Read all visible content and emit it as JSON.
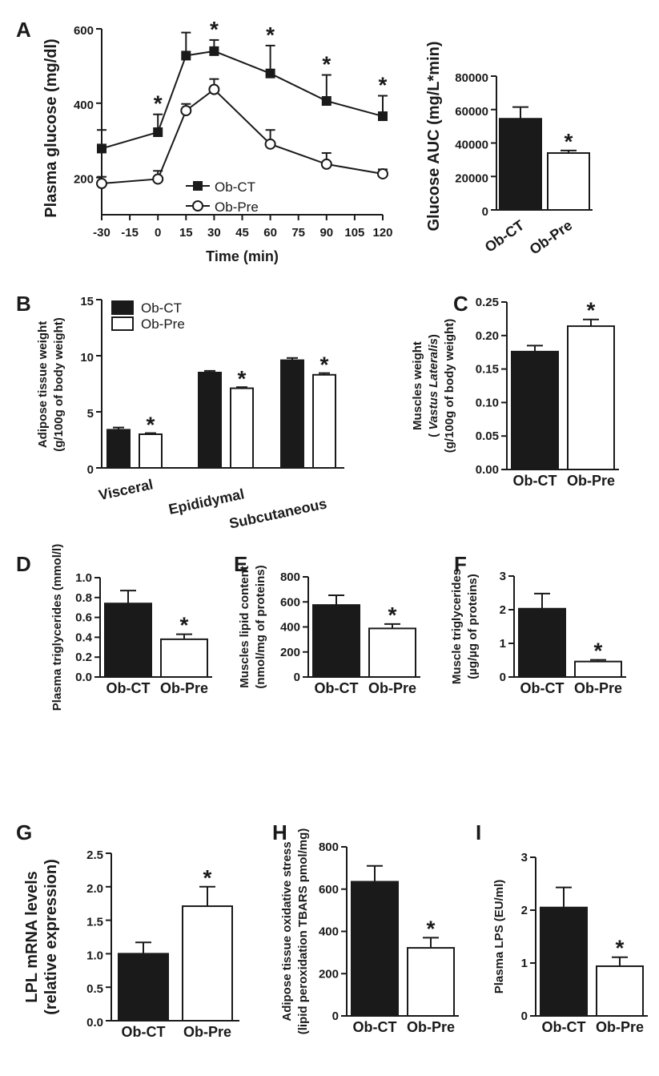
{
  "panels": [
    {
      "id": "A",
      "kind": "line",
      "ylabel": "Plasma glucose (mg/dl)",
      "xlabel": "Time (min)",
      "legend": [
        "Ob-CT",
        "Ob-Pre"
      ]
    },
    {
      "id": "A2",
      "kind": "bar",
      "ylabel": [
        "Glucose AUC (mg/L*min)"
      ]
    },
    {
      "id": "B",
      "kind": "grouped-bar",
      "ylabel": [
        "Adipose tissue weight",
        "(g/100g of body weight)"
      ],
      "legend": [
        "Ob-CT",
        "Ob-Pre"
      ]
    },
    {
      "id": "C",
      "kind": "bar",
      "ylabel": [
        "Muscles weight",
        "( Vastus Lateralis)",
        "(g/100g of body weight)"
      ]
    },
    {
      "id": "D",
      "kind": "bar",
      "ylabel": [
        "Plasma triglycerides (mmol/l)"
      ]
    },
    {
      "id": "E",
      "kind": "bar",
      "ylabel": [
        "Muscles lipid content",
        "(nmol/mg of proteins)"
      ]
    },
    {
      "id": "F",
      "kind": "bar",
      "ylabel": [
        "Muscle triglycerides",
        "(µg/µg of proteins)"
      ]
    },
    {
      "id": "G",
      "kind": "bar",
      "ylabel": [
        "LPL mRNA levels",
        "(relative expression)"
      ]
    },
    {
      "id": "H",
      "kind": "bar",
      "ylabel": [
        "Adipose tissue oxidative stress",
        "(lipid peroxidation TBARS pmol/mg)"
      ]
    },
    {
      "id": "I",
      "kind": "bar",
      "ylabel": [
        "Plasma LPS (EU/ml)"
      ]
    }
  ],
  "colors": {
    "ob_ct": "#1a1a1a",
    "ob_pre": "#ffffff",
    "axis": "#1a1a1a"
  },
  "chart_data": [
    {
      "panel": "A",
      "type": "line",
      "title": "",
      "xlabel": "Time (min)",
      "ylabel": "Plasma glucose (mg/dl)",
      "x": [
        -30,
        0,
        15,
        30,
        60,
        90,
        120
      ],
      "xticks": [
        -30,
        -15,
        0,
        15,
        30,
        45,
        60,
        75,
        90,
        105,
        120
      ],
      "yticks": [
        200,
        400,
        600
      ],
      "xlim": [
        -30,
        120
      ],
      "ylim": [
        100,
        600
      ],
      "series": [
        {
          "name": "Ob-CT",
          "values": [
            278,
            322,
            528,
            540,
            480,
            406,
            365
          ],
          "errors": [
            50,
            48,
            62,
            30,
            75,
            70,
            55
          ],
          "marker": "filled-square"
        },
        {
          "name": "Ob-Pre",
          "values": [
            184,
            196,
            380,
            437,
            290,
            236,
            210
          ],
          "errors": [
            18,
            22,
            18,
            28,
            38,
            30,
            12
          ],
          "marker": "open-circle"
        }
      ],
      "significant_x": [
        0,
        30,
        60,
        90,
        120
      ],
      "annotations": [
        "*"
      ]
    },
    {
      "panel": "A2",
      "type": "bar",
      "ylabel": "Glucose AUC (mg/L*min)",
      "categories": [
        "Ob-CT",
        "Ob-Pre"
      ],
      "values": [
        54500,
        34000
      ],
      "errors": [
        7000,
        1500
      ],
      "ylim": [
        0,
        80000
      ],
      "yticks": [
        0,
        20000,
        40000,
        60000,
        80000
      ],
      "significant": [
        false,
        true
      ]
    },
    {
      "panel": "B",
      "type": "bar",
      "ylabel": "Adipose tissue weight (g/100g of body weight)",
      "categories": [
        "Visceral",
        "Epididymal",
        "Subcutaneous"
      ],
      "series": [
        {
          "name": "Ob-CT",
          "values": [
            3.4,
            8.5,
            9.6
          ],
          "errors": [
            0.2,
            0.15,
            0.2
          ]
        },
        {
          "name": "Ob-Pre",
          "values": [
            3.0,
            7.1,
            8.3
          ],
          "errors": [
            0.1,
            0.1,
            0.15
          ]
        }
      ],
      "ylim": [
        0,
        15
      ],
      "yticks": [
        0,
        5,
        10,
        15
      ],
      "legend_position": "top-left",
      "significant": [
        true,
        true,
        true
      ]
    },
    {
      "panel": "C",
      "type": "bar",
      "ylabel": "Muscles weight (Vastus Lateralis) (g/100g of body weight)",
      "categories": [
        "Ob-CT",
        "Ob-Pre"
      ],
      "values": [
        0.176,
        0.214
      ],
      "errors": [
        0.009,
        0.01
      ],
      "ylim": [
        0,
        0.25
      ],
      "yticks": [
        "0.00",
        "0.05",
        "0.10",
        "0.15",
        "0.20",
        "0.25"
      ],
      "significant": [
        false,
        true
      ]
    },
    {
      "panel": "D",
      "type": "bar",
      "ylabel": "Plasma triglycerides (mmol/l)",
      "categories": [
        "Ob-CT",
        "Ob-Pre"
      ],
      "values": [
        0.74,
        0.38
      ],
      "errors": [
        0.13,
        0.05
      ],
      "ylim": [
        0,
        1.0
      ],
      "yticks": [
        "0.0",
        "0.2",
        "0.4",
        "0.6",
        "0.8",
        "1.0"
      ],
      "significant": [
        false,
        true
      ]
    },
    {
      "panel": "E",
      "type": "bar",
      "ylabel": "Muscles lipid content (nmol/mg of proteins)",
      "categories": [
        "Ob-CT",
        "Ob-Pre"
      ],
      "values": [
        575,
        388
      ],
      "errors": [
        78,
        35
      ],
      "ylim": [
        0,
        800
      ],
      "yticks": [
        "0",
        "200",
        "400",
        "600",
        "800"
      ],
      "significant": [
        false,
        true
      ]
    },
    {
      "panel": "F",
      "type": "bar",
      "ylabel": "Muscle triglycerides (µg/µg of proteins)",
      "categories": [
        "Ob-CT",
        "Ob-Pre"
      ],
      "values": [
        2.03,
        0.46
      ],
      "errors": [
        0.45,
        0.05
      ],
      "ylim": [
        0,
        3
      ],
      "yticks": [
        "0",
        "1",
        "2",
        "3"
      ],
      "significant": [
        false,
        true
      ]
    },
    {
      "panel": "G",
      "type": "bar",
      "ylabel": "LPL mRNA levels (relative expression)",
      "categories": [
        "Ob-CT",
        "Ob-Pre"
      ],
      "values": [
        1.0,
        1.71
      ],
      "errors": [
        0.17,
        0.29
      ],
      "ylim": [
        0,
        2.5
      ],
      "yticks": [
        "0.0",
        "0.5",
        "1.0",
        "1.5",
        "2.0",
        "2.5"
      ],
      "significant": [
        false,
        true
      ]
    },
    {
      "panel": "H",
      "type": "bar",
      "ylabel": "Adipose tissue oxidative stress (lipid peroxidation TBARS pmol/mg)",
      "categories": [
        "Ob-CT",
        "Ob-Pre"
      ],
      "values": [
        635,
        322
      ],
      "errors": [
        75,
        48
      ],
      "ylim": [
        0,
        800
      ],
      "yticks": [
        "0",
        "200",
        "400",
        "600",
        "800"
      ],
      "significant": [
        false,
        true
      ]
    },
    {
      "panel": "I",
      "type": "bar",
      "ylabel": "Plasma LPS (EU/ml)",
      "categories": [
        "Ob-CT",
        "Ob-Pre"
      ],
      "values": [
        2.05,
        0.94
      ],
      "errors": [
        0.38,
        0.17
      ],
      "ylim": [
        0,
        3
      ],
      "yticks": [
        "0",
        "1",
        "2",
        "3"
      ],
      "significant": [
        false,
        true
      ]
    }
  ]
}
